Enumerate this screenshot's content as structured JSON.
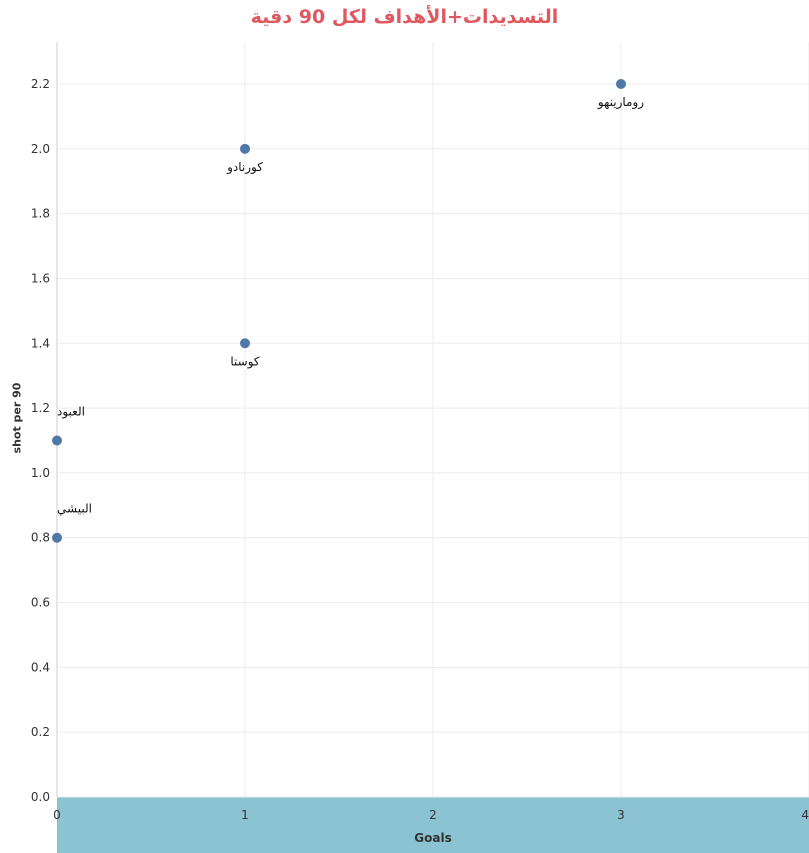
{
  "chart_data": {
    "type": "scatter",
    "title": "التسديدات+الأهداف لكل 90 دقية",
    "xlabel": "Goals",
    "ylabel": "shot per 90",
    "xlim": [
      0,
      4
    ],
    "ylim": [
      0,
      2.3
    ],
    "x_ticks": [
      "0",
      "1",
      "2",
      "3",
      "4"
    ],
    "y_ticks": [
      "0.0",
      "0.2",
      "0.4",
      "0.6",
      "0.8",
      "1.0",
      "1.2",
      "1.4",
      "1.6",
      "1.8",
      "2.0",
      "2.2"
    ],
    "grid": true,
    "point_color": "#4e79a7",
    "title_color": "#e0585f",
    "axis_band_color": "#8cc3d3",
    "points": [
      {
        "label": "رومارينهو",
        "x": 3,
        "y": 2.2
      },
      {
        "label": "كورنادو",
        "x": 1,
        "y": 2.0
      },
      {
        "label": "كوستا",
        "x": 1,
        "y": 1.4
      },
      {
        "label": "العبود",
        "x": 0,
        "y": 1.1
      },
      {
        "label": "البيشي",
        "x": 0,
        "y": 0.8
      }
    ]
  }
}
